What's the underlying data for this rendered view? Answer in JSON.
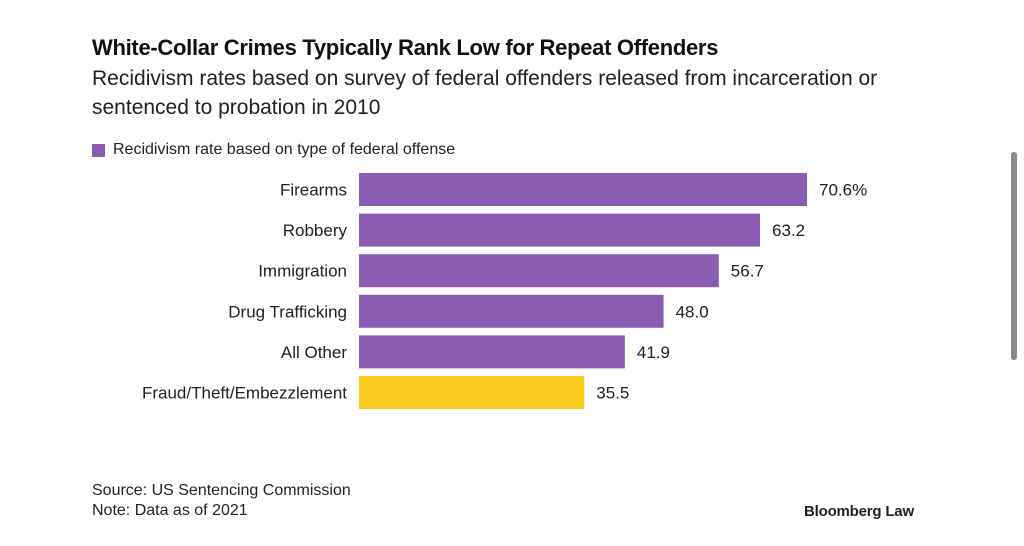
{
  "header": {
    "title": "White-Collar Crimes Typically Rank Low for Repeat Offenders",
    "subtitle": "Recidivism rates based on survey of federal offenders released from incarceration or sentenced to probation in 2010"
  },
  "chart_data": {
    "type": "bar",
    "orientation": "horizontal",
    "title": "White-Collar Crimes Typically Rank Low for Repeat Offenders",
    "subtitle": "Recidivism rates based on survey of federal offenders released from incarceration or sentenced to probation in 2010",
    "xlabel": "",
    "ylabel": "",
    "categories": [
      "Firearms",
      "Robbery",
      "Immigration",
      "Drug Trafficking",
      "All Other",
      "Fraud/Theft/Embezzlement"
    ],
    "values": [
      70.6,
      63.2,
      56.7,
      48.0,
      41.9,
      35.5
    ],
    "value_labels": [
      "70.6%",
      "63.2",
      "56.7",
      "48.0",
      "41.9",
      "35.5"
    ],
    "highlight": [
      "default",
      "default",
      "default",
      "default",
      "default",
      "highlight"
    ],
    "legend": [
      {
        "label": "Recidivism rate based on type of federal offense",
        "color": "#8a5db3"
      }
    ],
    "legend_position": "top-left",
    "colors": {
      "default": "#8a5db3",
      "highlight": "#fcc91d"
    },
    "xlim": [
      0,
      70.6
    ],
    "grid": false
  },
  "footer": {
    "source": "Source: US Sentencing Commission",
    "note": "Note: Data as of 2021",
    "brand": "Bloomberg Law"
  }
}
